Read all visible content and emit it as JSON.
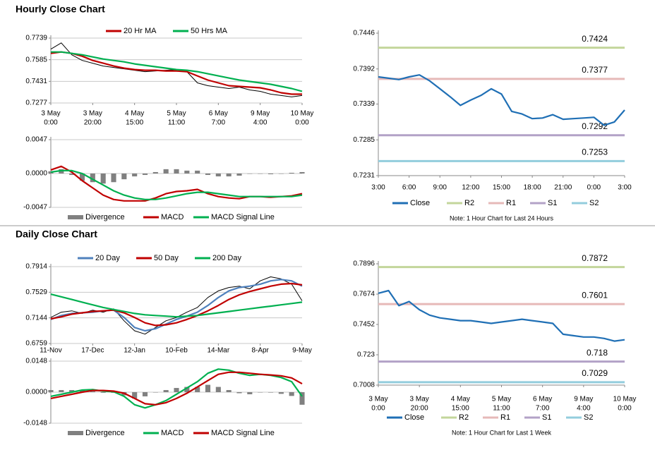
{
  "headings": [
    "Hourly Close Chart",
    "Daily Close Chart"
  ],
  "chart_data": [
    {
      "type": "line",
      "ylim": [
        0.7277,
        0.7739
      ],
      "yticks": [
        0.7277,
        0.7431,
        0.7585,
        0.7739
      ],
      "grid": true,
      "categories": [
        [
          "3 May",
          "0:00"
        ],
        null,
        null,
        null,
        [
          "3 May",
          "20:00"
        ],
        null,
        null,
        null,
        [
          "4 May",
          "15:00"
        ],
        null,
        null,
        null,
        [
          "5 May",
          "11:00"
        ],
        null,
        null,
        null,
        [
          "6 May",
          "7:00"
        ],
        null,
        null,
        null,
        [
          "9 May",
          "4:00"
        ],
        null,
        null,
        null,
        [
          "10 May",
          "0:00"
        ]
      ],
      "series": [
        {
          "color": "#000000",
          "values": [
            0.766,
            0.7705,
            0.762,
            0.758,
            0.756,
            0.754,
            0.753,
            0.752,
            0.751,
            0.75,
            0.7505,
            0.751,
            0.7515,
            0.75,
            0.742,
            0.74,
            0.739,
            0.738,
            0.739,
            0.737,
            0.736,
            0.734,
            0.733,
            0.732,
            0.733
          ]
        },
        {
          "name": "20 Hr MA",
          "color": "#c00000",
          "values": [
            0.763,
            0.764,
            0.763,
            0.761,
            0.758,
            0.756,
            0.754,
            0.7525,
            0.7515,
            0.751,
            0.751,
            0.7505,
            0.7505,
            0.75,
            0.747,
            0.744,
            0.742,
            0.74,
            0.7395,
            0.739,
            0.7385,
            0.737,
            0.735,
            0.734,
            0.734
          ]
        },
        {
          "name": "50 Hrs MA",
          "color": "#00b050",
          "values": [
            0.764,
            0.764,
            0.763,
            0.762,
            0.7605,
            0.759,
            0.758,
            0.757,
            0.7555,
            0.7545,
            0.7535,
            0.7525,
            0.7515,
            0.751,
            0.75,
            0.7485,
            0.747,
            0.7455,
            0.744,
            0.743,
            0.742,
            0.741,
            0.7395,
            0.738,
            0.736
          ]
        }
      ]
    },
    {
      "type": "combo",
      "ylim": [
        -0.0047,
        0.0047
      ],
      "yticks": [
        -0.0047,
        {
          "value": 0,
          "label": "0.0000"
        },
        0.0047
      ],
      "grid": true,
      "series": [
        {
          "name": "Divergence",
          "type": "bar",
          "color": "#808080",
          "values": [
            0.0003,
            0.0006,
            -0.0002,
            -0.001,
            -0.0012,
            -0.0014,
            -0.0012,
            -0.0008,
            -0.0004,
            -0.0002,
            0.0002,
            0.0006,
            0.0006,
            0.0004,
            0.0004,
            -0.0002,
            -0.0004,
            -0.0004,
            -0.0003,
            0.0,
            0.0,
            -0.0001,
            0.0,
            0.0001,
            0.0002
          ]
        },
        {
          "name": "MACD",
          "type": "line",
          "color": "#c00000",
          "values": [
            0.0005,
            0.001,
            0.0002,
            -0.001,
            -0.002,
            -0.003,
            -0.0036,
            -0.0038,
            -0.0038,
            -0.0038,
            -0.0034,
            -0.0028,
            -0.0025,
            -0.0024,
            -0.0022,
            -0.0028,
            -0.0032,
            -0.0034,
            -0.0035,
            -0.0032,
            -0.0032,
            -0.0033,
            -0.0032,
            -0.0031,
            -0.0028
          ]
        },
        {
          "name": "MACD Signal Line",
          "type": "line",
          "color": "#00b050",
          "values": [
            0.0002,
            0.0004,
            0.0004,
            0.0,
            -0.0008,
            -0.0016,
            -0.0024,
            -0.003,
            -0.0034,
            -0.0036,
            -0.0036,
            -0.0034,
            -0.0031,
            -0.0028,
            -0.0026,
            -0.0026,
            -0.0028,
            -0.003,
            -0.0032,
            -0.0032,
            -0.0032,
            -0.0032,
            -0.0032,
            -0.0032,
            -0.003
          ]
        }
      ]
    },
    {
      "type": "line",
      "ylim": [
        0.7231,
        0.7446
      ],
      "yticks": [
        0.7231,
        0.7285,
        0.7339,
        0.7392,
        0.7446
      ],
      "grid": false,
      "categories": [
        [
          "3:00"
        ],
        null,
        null,
        [
          "6:00"
        ],
        null,
        null,
        [
          "9:00"
        ],
        null,
        null,
        [
          "12:00"
        ],
        null,
        null,
        [
          "15:00"
        ],
        null,
        null,
        [
          "18:00"
        ],
        null,
        null,
        [
          "21:00"
        ],
        null,
        null,
        [
          "0:00"
        ],
        null,
        null,
        [
          "3:00"
        ]
      ],
      "series": [
        {
          "name": "Close",
          "color": "#1f6fb5",
          "values": [
            0.738,
            0.7378,
            0.7376,
            0.738,
            0.7383,
            0.7374,
            0.7362,
            0.735,
            0.7337,
            0.7345,
            0.7352,
            0.7362,
            0.7354,
            0.7328,
            0.7324,
            0.7317,
            0.7318,
            0.7323,
            0.7316,
            0.7317,
            0.7318,
            0.7319,
            0.7307,
            0.7312,
            0.733
          ]
        }
      ],
      "levels": [
        {
          "name": "R2",
          "color": "#c3d69b",
          "value": 0.7424
        },
        {
          "name": "R1",
          "color": "#e6b9b8",
          "value": 0.7377
        },
        {
          "name": "S1",
          "color": "#b3a2c7",
          "value": 0.7292
        },
        {
          "name": "S2",
          "color": "#93cddd",
          "value": 0.7253
        }
      ],
      "note": "Note: 1 Hour Chart for Last 24 Hours"
    },
    {
      "type": "line",
      "ylim": [
        0.6759,
        0.7914
      ],
      "yticks": [
        0.6759,
        0.7144,
        0.7529,
        0.7914
      ],
      "grid": true,
      "categories": [
        [
          "11-Nov"
        ],
        null,
        null,
        null,
        [
          "17-Dec"
        ],
        null,
        null,
        null,
        [
          "12-Jan"
        ],
        null,
        null,
        null,
        [
          "10-Feb"
        ],
        null,
        null,
        null,
        [
          "14-Mar"
        ],
        null,
        null,
        null,
        [
          "8-Apr"
        ],
        null,
        null,
        null,
        [
          "9-May"
        ]
      ],
      "series": [
        {
          "color": "#000000",
          "values": [
            0.715,
            0.723,
            0.725,
            0.721,
            0.726,
            0.723,
            0.728,
            0.71,
            0.695,
            0.69,
            0.7,
            0.71,
            0.715,
            0.723,
            0.73,
            0.745,
            0.755,
            0.76,
            0.762,
            0.758,
            0.77,
            0.776,
            0.773,
            0.765,
            0.74
          ]
        },
        {
          "name": "20 Day",
          "color": "#4f81bd",
          "values": [
            0.712,
            0.718,
            0.721,
            0.722,
            0.723,
            0.725,
            0.726,
            0.715,
            0.7,
            0.695,
            0.698,
            0.705,
            0.712,
            0.717,
            0.723,
            0.733,
            0.745,
            0.755,
            0.76,
            0.762,
            0.765,
            0.77,
            0.772,
            0.77,
            0.762
          ]
        },
        {
          "name": "50 Day",
          "color": "#c00000",
          "values": [
            0.713,
            0.716,
            0.72,
            0.722,
            0.724,
            0.725,
            0.726,
            0.722,
            0.715,
            0.707,
            0.703,
            0.704,
            0.707,
            0.712,
            0.718,
            0.725,
            0.733,
            0.742,
            0.749,
            0.754,
            0.758,
            0.762,
            0.765,
            0.766,
            0.764
          ]
        },
        {
          "name": "200 Day",
          "color": "#00b050",
          "values": [
            0.75,
            0.746,
            0.742,
            0.738,
            0.734,
            0.73,
            0.727,
            0.724,
            0.721,
            0.719,
            0.718,
            0.717,
            0.716,
            0.717,
            0.718,
            0.72,
            0.722,
            0.724,
            0.726,
            0.728,
            0.73,
            0.732,
            0.734,
            0.736,
            0.738
          ]
        }
      ]
    },
    {
      "type": "combo",
      "ylim": [
        -0.0148,
        0.0148
      ],
      "yticks": [
        -0.0148,
        {
          "value": 0,
          "label": "0.0000"
        },
        0.0148
      ],
      "grid": true,
      "series": [
        {
          "name": "Divergence",
          "type": "bar",
          "color": "#808080",
          "values": [
            0.001,
            0.001,
            0.001,
            0.001,
            0.0004,
            -0.0003,
            -0.0003,
            -0.0015,
            -0.003,
            -0.002,
            0.0,
            0.001,
            0.002,
            0.0025,
            0.0025,
            0.0035,
            0.0025,
            0.001,
            -0.0005,
            -0.001,
            0.0,
            -0.0002,
            -0.0008,
            -0.0018,
            -0.006
          ]
        },
        {
          "name": "MACD",
          "type": "line",
          "color": "#00b050",
          "values": [
            -0.002,
            -0.001,
            0.0,
            0.001,
            0.0012,
            0.0005,
            0.0002,
            -0.002,
            -0.006,
            -0.0075,
            -0.006,
            -0.004,
            -0.001,
            0.002,
            0.005,
            0.009,
            0.011,
            0.0105,
            0.009,
            0.008,
            0.0085,
            0.008,
            0.007,
            0.005,
            -0.002
          ]
        },
        {
          "name": "MACD Signal Line",
          "type": "line",
          "color": "#c00000",
          "values": [
            -0.003,
            -0.002,
            -0.001,
            0.0,
            0.0008,
            0.0008,
            0.0005,
            -0.0005,
            -0.003,
            -0.0055,
            -0.006,
            -0.005,
            -0.003,
            -0.0005,
            0.0025,
            0.0055,
            0.0085,
            0.0095,
            0.0095,
            0.009,
            0.0085,
            0.0082,
            0.0078,
            0.0068,
            0.004
          ]
        }
      ]
    },
    {
      "type": "line",
      "ylim": [
        0.7008,
        0.7896
      ],
      "yticks": [
        0.7008,
        0.723,
        0.7452,
        0.7674,
        0.7896
      ],
      "grid": false,
      "categories": [
        [
          "3 May",
          "0:00"
        ],
        null,
        null,
        null,
        [
          "3 May",
          "20:00"
        ],
        null,
        null,
        null,
        [
          "4 May",
          "15:00"
        ],
        null,
        null,
        null,
        [
          "5 May",
          "11:00"
        ],
        null,
        null,
        null,
        [
          "6 May",
          "7:00"
        ],
        null,
        null,
        null,
        [
          "9 May",
          "4:00"
        ],
        null,
        null,
        null,
        [
          "10 May",
          "0:00"
        ]
      ],
      "series": [
        {
          "name": "Close",
          "color": "#1f6fb5",
          "values": [
            0.768,
            0.77,
            0.759,
            0.762,
            0.756,
            0.752,
            0.75,
            0.749,
            0.748,
            0.748,
            0.747,
            0.746,
            0.747,
            0.748,
            0.749,
            0.748,
            0.747,
            0.746,
            0.738,
            0.737,
            0.736,
            0.736,
            0.735,
            0.733,
            0.734
          ]
        }
      ],
      "levels": [
        {
          "name": "R2",
          "color": "#c3d69b",
          "value": 0.7872
        },
        {
          "name": "R1",
          "color": "#e6b9b8",
          "value": 0.7601
        },
        {
          "name": "S1",
          "color": "#b3a2c7",
          "value": 0.718
        },
        {
          "name": "S2",
          "color": "#93cddd",
          "value": 0.7029
        }
      ],
      "note": "Note: 1 Hour Chart for Last 1 Week"
    }
  ]
}
